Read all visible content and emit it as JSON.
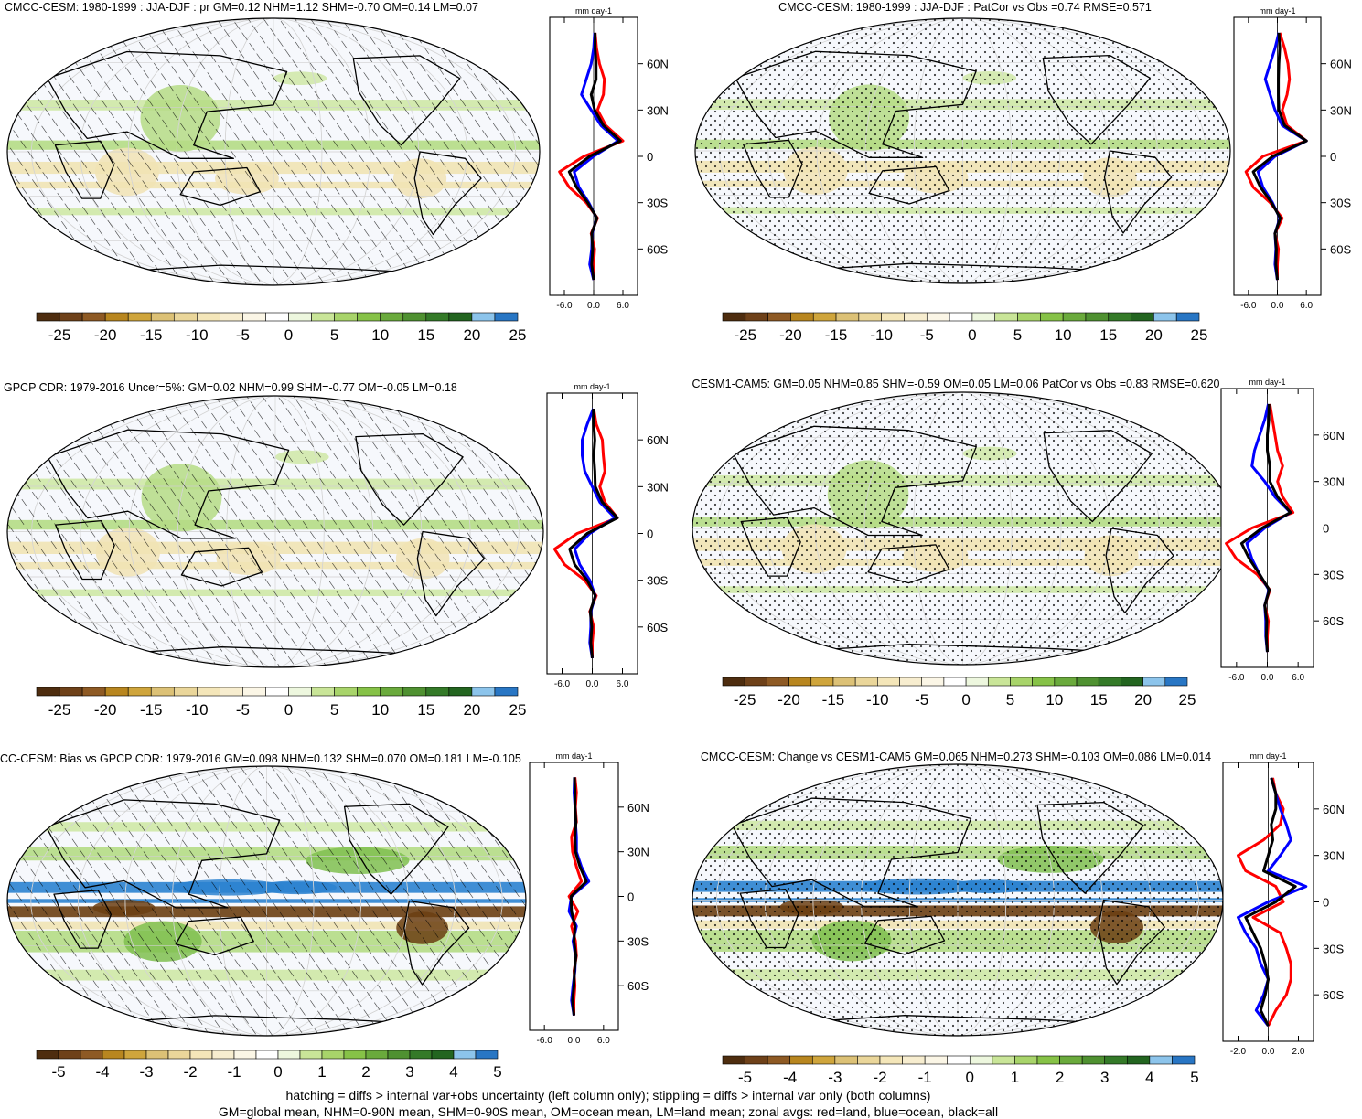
{
  "panels": [
    {
      "title": "CMCC-CESM: 1980-1999 : JJA-DJF : pr GM=0.12 NHM=1.12 SHM=-0.70 OM=0.14 LM=0.07",
      "overlay": "hatch",
      "colorbar": {
        "labels": [
          "-25",
          "-20",
          "-15",
          "-10",
          "-5",
          "0",
          "5",
          "10",
          "15",
          "20",
          "25"
        ]
      },
      "zonal": {
        "units": "mm day-1",
        "xticks": [
          "-6.0",
          "0.0",
          "6.0"
        ],
        "xrange": [
          -9,
          9
        ],
        "lat_ticks": [
          "60N",
          "30N",
          "0",
          "30S",
          "60S"
        ],
        "series": [
          {
            "name": "land",
            "color": "#ff0000",
            "lat": [
              80,
              70,
              60,
              50,
              40,
              30,
              20,
              10,
              0,
              -10,
              -20,
              -30,
              -40,
              -50,
              -60,
              -70,
              -80
            ],
            "values": [
              0.3,
              0.6,
              1.2,
              2.2,
              2.0,
              0.8,
              2.5,
              6.0,
              -2.0,
              -7.0,
              -5.0,
              -1.5,
              0.8,
              -0.5,
              0.2,
              0,
              0
            ]
          },
          {
            "name": "ocean",
            "color": "#0000ff",
            "lat": [
              80,
              70,
              60,
              50,
              40,
              30,
              20,
              10,
              0,
              -10,
              -20,
              -30,
              -40,
              -50,
              -60,
              -70,
              -80
            ],
            "values": [
              0.2,
              0.0,
              -0.5,
              -1.5,
              -2.5,
              -0.5,
              1.5,
              5.0,
              0.0,
              -4.0,
              -3.0,
              -1.0,
              0.6,
              -0.3,
              -0.4,
              -0.8,
              0
            ]
          },
          {
            "name": "all",
            "color": "#000000",
            "lat": [
              80,
              70,
              60,
              50,
              40,
              30,
              20,
              10,
              0,
              -10,
              -20,
              -30,
              -40,
              -50,
              -60,
              -70,
              -80
            ],
            "values": [
              0.3,
              0.3,
              0.5,
              0.5,
              -0.5,
              0.2,
              2.0,
              5.5,
              -0.8,
              -5.0,
              -3.5,
              -1.2,
              0.7,
              -0.4,
              -0.2,
              -0.4,
              0
            ]
          }
        ]
      }
    },
    {
      "title": "CMCC-CESM: 1980-1999 : JJA-DJF : PatCor vs Obs =0.74 RMSE=0.571",
      "overlay": "stipple",
      "colorbar": {
        "labels": [
          "-25",
          "-20",
          "-15",
          "-10",
          "-5",
          "0",
          "5",
          "10",
          "15",
          "20",
          "25"
        ]
      },
      "zonal": {
        "units": "mm day-1",
        "xticks": [
          "-6.0",
          "0.0",
          "6.0"
        ],
        "xrange": [
          -9,
          9
        ],
        "lat_ticks": [
          "60N",
          "30N",
          "0",
          "30S",
          "60S"
        ],
        "series": [
          {
            "name": "land",
            "color": "#ff0000",
            "lat": [
              80,
              70,
              60,
              50,
              40,
              30,
              20,
              10,
              0,
              -10,
              -20,
              -30,
              -40,
              -50,
              -60,
              -70,
              -80
            ],
            "values": [
              0.5,
              1.5,
              2.2,
              2.5,
              2.0,
              1.0,
              2.0,
              6.0,
              -3.0,
              -6.5,
              -5.0,
              -1.5,
              1.0,
              -0.5,
              0.2,
              0,
              0
            ]
          },
          {
            "name": "ocean",
            "color": "#0000ff",
            "lat": [
              80,
              70,
              60,
              50,
              40,
              30,
              20,
              10,
              0,
              -10,
              -20,
              -30,
              -40,
              -50,
              -60,
              -70,
              -80
            ],
            "values": [
              0.3,
              -0.5,
              -1.5,
              -2.5,
              -1.5,
              -0.5,
              1.0,
              6.0,
              -0.5,
              -4.0,
              -3.0,
              -1.0,
              0.5,
              -0.5,
              -0.3,
              -0.5,
              0
            ]
          },
          {
            "name": "all",
            "color": "#000000",
            "lat": [
              80,
              70,
              60,
              50,
              40,
              30,
              20,
              10,
              0,
              -10,
              -20,
              -30,
              -40,
              -50,
              -60,
              -70,
              -80
            ],
            "values": [
              0.3,
              0.5,
              0.3,
              0.2,
              0.2,
              0.3,
              1.5,
              6.0,
              -1.0,
              -5.0,
              -3.5,
              -1.2,
              0.6,
              -0.5,
              -0.2,
              -0.3,
              0
            ]
          }
        ]
      }
    },
    {
      "title": "GPCP CDR: 1979-2016 Uncer=5%: GM=0.02 NHM=0.99 SHM=-0.77 OM=-0.05 LM=0.18",
      "overlay": "hatch",
      "colorbar": {
        "labels": [
          "-25",
          "-20",
          "-15",
          "-10",
          "-5",
          "0",
          "5",
          "10",
          "15",
          "20",
          "25"
        ]
      },
      "zonal": {
        "units": "mm day-1",
        "xticks": [
          "-6.0",
          "0.0",
          "6.0"
        ],
        "xrange": [
          -9,
          9
        ],
        "lat_ticks": [
          "60N",
          "30N",
          "0",
          "30S",
          "60S"
        ],
        "series": [
          {
            "name": "land",
            "color": "#ff0000",
            "lat": [
              80,
              70,
              60,
              50,
              40,
              30,
              20,
              10,
              0,
              -10,
              -20,
              -30,
              -40,
              -50,
              -60,
              -70,
              -80
            ],
            "values": [
              0.3,
              0.8,
              2.0,
              2.2,
              2.5,
              1.5,
              2.5,
              5.0,
              -3.0,
              -7.5,
              -5.5,
              -1.5,
              0.8,
              -0.5,
              0.3,
              0,
              0
            ]
          },
          {
            "name": "ocean",
            "color": "#0000ff",
            "lat": [
              80,
              70,
              60,
              50,
              40,
              30,
              20,
              10,
              0,
              -10,
              -20,
              -30,
              -40,
              -50,
              -60,
              -70,
              -80
            ],
            "values": [
              0.2,
              -1.0,
              -2.0,
              -2.0,
              -1.5,
              0.0,
              1.5,
              4.5,
              -0.5,
              -3.5,
              -2.5,
              -0.5,
              0.6,
              -0.3,
              -0.3,
              -0.5,
              0
            ]
          },
          {
            "name": "all",
            "color": "#000000",
            "lat": [
              80,
              70,
              60,
              50,
              40,
              30,
              20,
              10,
              0,
              -10,
              -20,
              -30,
              -40,
              -50,
              -60,
              -70,
              -80
            ],
            "values": [
              0.2,
              0.3,
              0.5,
              0.3,
              0.5,
              0.6,
              2.0,
              5.0,
              -1.0,
              -4.5,
              -3.5,
              -1.0,
              0.6,
              -0.4,
              -0.1,
              -0.3,
              0
            ]
          }
        ]
      }
    },
    {
      "title": "CESM1-CAM5: GM=0.05 NHM=0.85 SHM=-0.59 OM=0.05 LM=0.06 PatCor vs Obs =0.83 RMSE=0.620",
      "overlay": "stipple",
      "colorbar": {
        "labels": [
          "-25",
          "-20",
          "-15",
          "-10",
          "-5",
          "0",
          "5",
          "10",
          "15",
          "20",
          "25"
        ]
      },
      "zonal": {
        "units": "mm day-1",
        "xticks": [
          "-6.0",
          "0.0",
          "6.0"
        ],
        "xrange": [
          -9,
          9
        ],
        "lat_ticks": [
          "60N",
          "30N",
          "0",
          "30S",
          "60S"
        ],
        "series": [
          {
            "name": "land",
            "color": "#ff0000",
            "lat": [
              80,
              70,
              60,
              50,
              40,
              30,
              20,
              10,
              0,
              -10,
              -20,
              -30,
              -40,
              -50,
              -60,
              -70,
              -80
            ],
            "values": [
              0.5,
              1.0,
              1.5,
              2.0,
              3.0,
              2.0,
              3.0,
              5.0,
              -3.0,
              -8.0,
              -6.0,
              -2.0,
              0.5,
              -0.5,
              0.2,
              0,
              0
            ]
          },
          {
            "name": "ocean",
            "color": "#0000ff",
            "lat": [
              80,
              70,
              60,
              50,
              40,
              30,
              20,
              10,
              0,
              -10,
              -20,
              -30,
              -40,
              -50,
              -60,
              -70,
              -80
            ],
            "values": [
              0.2,
              -0.5,
              -1.5,
              -2.5,
              -3.0,
              -0.5,
              1.5,
              4.5,
              -0.5,
              -4.0,
              -3.0,
              -1.5,
              0.3,
              -0.5,
              -0.3,
              -0.3,
              0
            ]
          },
          {
            "name": "all",
            "color": "#000000",
            "lat": [
              80,
              70,
              60,
              50,
              40,
              30,
              20,
              10,
              0,
              -10,
              -20,
              -30,
              -40,
              -50,
              -60,
              -70,
              -80
            ],
            "values": [
              0.3,
              0.3,
              0.0,
              0.0,
              0.5,
              0.5,
              2.0,
              4.5,
              -1.0,
              -5.0,
              -3.5,
              -1.5,
              0.4,
              -0.5,
              -0.1,
              -0.2,
              0
            ]
          }
        ]
      }
    },
    {
      "title": "CC-CESM: Bias vs GPCP CDR: 1979-2016 GM=0.098 NHM=0.132 SHM=0.070 OM=0.181 LM=-0.105",
      "overlay": "hatch",
      "colorbar": {
        "labels": [
          "-5",
          "-4",
          "-3",
          "-2",
          "-1",
          "0",
          "1",
          "2",
          "3",
          "4",
          "5"
        ]
      },
      "zonal": {
        "units": "mm day-1",
        "xticks": [
          "-6.0",
          "0.0",
          "6.0"
        ],
        "xrange": [
          -9,
          9
        ],
        "lat_ticks": [
          "60N",
          "30N",
          "0",
          "30S",
          "60S"
        ],
        "series": [
          {
            "name": "land",
            "color": "#ff0000",
            "lat": [
              80,
              70,
              60,
              50,
              40,
              30,
              20,
              10,
              0,
              -10,
              -20,
              -30,
              -40,
              -50,
              -60,
              -70,
              -80
            ],
            "values": [
              0.2,
              0.5,
              0.3,
              0.5,
              -0.5,
              -0.3,
              0.5,
              1.5,
              -1.0,
              0.8,
              -0.5,
              0.3,
              0.5,
              0.0,
              0.2,
              0,
              0
            ]
          },
          {
            "name": "ocean",
            "color": "#0000ff",
            "lat": [
              80,
              70,
              60,
              50,
              40,
              30,
              20,
              10,
              0,
              -10,
              -20,
              -30,
              -40,
              -50,
              -60,
              -70,
              -80
            ],
            "values": [
              0.1,
              0.0,
              0.2,
              0.3,
              0.5,
              0.5,
              1.5,
              3.0,
              -0.5,
              -1.0,
              0.5,
              -0.2,
              0.3,
              0.2,
              -0.2,
              -0.5,
              0
            ]
          },
          {
            "name": "all",
            "color": "#000000",
            "lat": [
              80,
              70,
              60,
              50,
              40,
              30,
              20,
              10,
              0,
              -10,
              -20,
              -30,
              -40,
              -50,
              -60,
              -70,
              -80
            ],
            "values": [
              0.1,
              0.2,
              0.2,
              0.4,
              0.2,
              0.3,
              1.2,
              2.5,
              -0.6,
              -0.5,
              0.2,
              0.0,
              0.4,
              0.1,
              0.0,
              -0.3,
              0
            ]
          }
        ]
      }
    },
    {
      "title": "CMCC-CESM: Change vs CESM1-CAM5 GM=0.065 NHM=0.273 SHM=-0.103 OM=0.086 LM=0.014",
      "overlay": "stipple",
      "colorbar": {
        "labels": [
          "-5",
          "-4",
          "-3",
          "-2",
          "-1",
          "0",
          "1",
          "2",
          "3",
          "4",
          "5"
        ]
      },
      "zonal": {
        "units": "mm day-1",
        "xticks": [
          "-2.0",
          "0.0",
          "2.0"
        ],
        "xrange": [
          -3,
          3
        ],
        "lat_ticks": [
          "60N",
          "30N",
          "0",
          "30S",
          "60S"
        ],
        "series": [
          {
            "name": "land",
            "color": "#ff0000",
            "lat": [
              80,
              70,
              60,
              50,
              40,
              30,
              20,
              10,
              0,
              -10,
              -20,
              -30,
              -40,
              -50,
              -60,
              -70,
              -80
            ],
            "values": [
              0.3,
              0.5,
              1.0,
              0.8,
              -0.3,
              -2.0,
              -1.5,
              0.5,
              1.0,
              -1.0,
              0.8,
              1.2,
              1.5,
              1.5,
              1.2,
              0.5,
              0
            ]
          },
          {
            "name": "ocean",
            "color": "#0000ff",
            "lat": [
              80,
              70,
              60,
              50,
              40,
              30,
              20,
              10,
              0,
              -10,
              -20,
              -30,
              -40,
              -50,
              -60,
              -70,
              -80
            ],
            "values": [
              0.2,
              0.5,
              0.8,
              1.2,
              1.5,
              0.8,
              0.0,
              2.5,
              0.0,
              -2.0,
              -1.5,
              -0.8,
              -0.5,
              0.0,
              -0.3,
              -0.8,
              0
            ]
          },
          {
            "name": "all",
            "color": "#000000",
            "lat": [
              80,
              70,
              60,
              50,
              40,
              30,
              20,
              10,
              0,
              -10,
              -20,
              -30,
              -40,
              -50,
              -60,
              -70,
              -80
            ],
            "values": [
              0.2,
              0.5,
              0.5,
              0.2,
              0.3,
              0.0,
              -0.3,
              1.8,
              0.5,
              -1.5,
              -1.0,
              -0.5,
              -0.2,
              0.0,
              -0.2,
              -0.5,
              0
            ]
          }
        ]
      }
    }
  ],
  "colorbar_colors": [
    "#4e2d0f",
    "#6e4119",
    "#8e5a24",
    "#b8861f",
    "#cfa53c",
    "#dcc176",
    "#ead69a",
    "#f4e6b9",
    "#f7edcf",
    "#fbf6e6",
    "#ffffff",
    "#edf7de",
    "#c9e598",
    "#a8d46a",
    "#86c247",
    "#6aaa3c",
    "#4f9131",
    "#347a28",
    "#236520",
    "#8cc4eb",
    "#2876c4"
  ],
  "footer": {
    "line1": "hatching = diffs > internal var+obs uncertainty (left column only); stippling = diffs > internal var only (both columns)",
    "line2": "GM=global mean, NHM=0-90N mean, SHM=0-90S mean, OM=ocean mean, LM=land mean; zonal avgs: red=land, blue=ocean, black=all"
  }
}
